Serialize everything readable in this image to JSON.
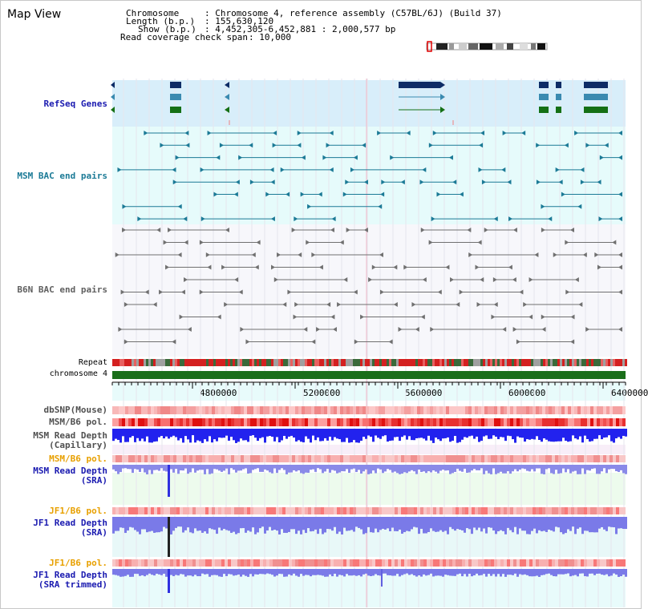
{
  "page": {
    "title": "Map View"
  },
  "info": {
    "chromosome_label": "Chromosome",
    "chromosome_value": ": Chromosome 4, reference assembly (C57BL/6J) (Build 37)",
    "length_label": "Length (b.p.)",
    "length_value": ": 155,630,120",
    "show_label": "Show (b.p.)",
    "show_value": ": 4,452,305-6,452,881 : 2,000,577 bp",
    "coverage_label": "Read coverage check span",
    "coverage_value": ": 10,000"
  },
  "tracks": {
    "refseq": "RefSeq Genes",
    "msm_bac": "MSM BAC end pairs",
    "b6n_bac": "B6N BAC end pairs",
    "repeat": "Repeat",
    "chromosome": "chromosome 4",
    "dbsnp": "dbSNP(Mouse)",
    "msm_b6_pol": "MSM/B6 pol.",
    "msm_read_depth_cap_1": "MSM Read Depth",
    "msm_read_depth_cap_2": "(Capillary)",
    "msm_b6_pol_2": "MSM/B6 pol.",
    "msm_read_depth_sra_1": "MSM Read Depth",
    "msm_read_depth_sra_2": "(SRA)",
    "jf1_b6_pol": "JF1/B6 pol.",
    "jf1_read_depth_sra_1": "JF1 Read Depth",
    "jf1_read_depth_sra_2": "(SRA)",
    "jf1_b6_pol_2": "JF1/B6 pol.",
    "jf1_read_depth_trim_1": "JF1 Read Depth",
    "jf1_read_depth_trim_2": "(SRA trimmed)"
  },
  "axis": {
    "ticks": [
      "4800000",
      "5200000",
      "5600000",
      "6000000",
      "6400000"
    ]
  },
  "colors": {
    "refseq_bg": "#d8eefa",
    "msm_bac_bg": "#e6fbfb",
    "b6n_bac_bg": "#f7f7fb",
    "msm_color": "#1b7a96",
    "b6n_color": "#707070",
    "navy": "#0d2c66",
    "label_blue": "#1a1ab0",
    "label_teal": "#1b7a96",
    "label_orange": "#e8a000",
    "chrom_green": "#1a6e1a"
  }
}
